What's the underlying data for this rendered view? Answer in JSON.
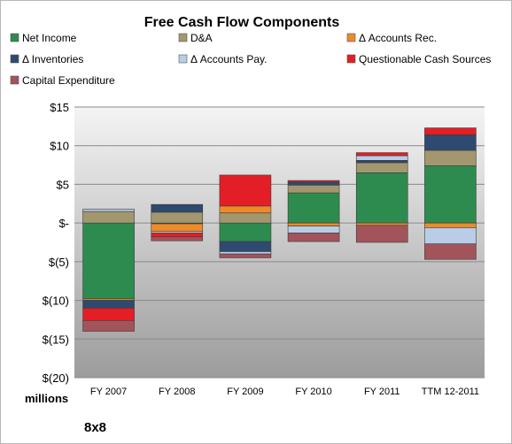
{
  "chart_data": {
    "type": "bar",
    "stacked": true,
    "title": "Free Cash Flow Components",
    "unit_label": "millions",
    "company": "8x8",
    "categories": [
      "FY 2007",
      "FY 2008",
      "FY 2009",
      "FY 2010",
      "FY 2011",
      "TTM 12-2011"
    ],
    "ylim": [
      -20,
      15
    ],
    "yticks": [
      15,
      10,
      5,
      0,
      -5,
      -10,
      -15,
      -20
    ],
    "ytick_labels": [
      "$15",
      "$10",
      "$5",
      "$-",
      "$(5)",
      "$(10)",
      "$(15)",
      "$(20)"
    ],
    "grid": true,
    "legend_position": "top",
    "series": [
      {
        "name": "Net Income",
        "color": "#2e8b4f",
        "values": [
          -9.8,
          -0.1,
          -2.4,
          3.9,
          6.5,
          7.4
        ]
      },
      {
        "name": "D&A",
        "color": "#a39770",
        "values": [
          1.5,
          1.4,
          1.3,
          1.0,
          1.3,
          2.0
        ]
      },
      {
        "name": "Δ Accounts Rec.",
        "color": "#ee8a2a",
        "values": [
          -0.2,
          -1.0,
          0.9,
          -0.4,
          -0.3,
          -0.6
        ]
      },
      {
        "name": "Δ Inventories",
        "color": "#2f4a70",
        "values": [
          -1.0,
          1.0,
          -1.3,
          0.4,
          0.3,
          2.0
        ]
      },
      {
        "name": "Δ Accounts Pay.",
        "color": "#b9cde6",
        "values": [
          0.3,
          -0.2,
          -0.3,
          -0.9,
          0.6,
          -2.1
        ]
      },
      {
        "name": "Questionable Cash Sources",
        "color": "#e41e26",
        "values": [
          -1.6,
          -0.5,
          4.0,
          0.2,
          0.4,
          0.9
        ]
      },
      {
        "name": "Capital Expenditure",
        "color": "#a3535a",
        "values": [
          -1.4,
          -0.5,
          -0.5,
          -1.1,
          -2.2,
          -2.0
        ]
      }
    ]
  }
}
